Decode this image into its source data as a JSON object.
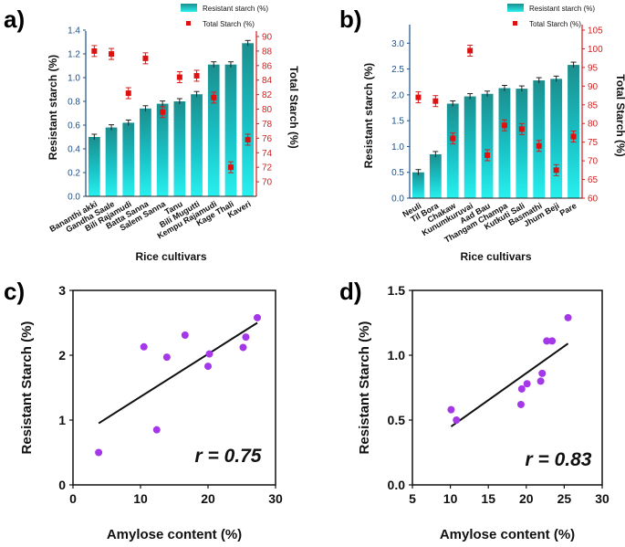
{
  "chart_data": [
    {
      "panel": "a)",
      "type": "bar",
      "xlabel": "Rice cultivars",
      "ylabel": "Resistant starch (%)",
      "y2label": "Total Starch (%)",
      "ylim": [
        0,
        1.5
      ],
      "yticks": [
        "0.0",
        "0.2",
        "0.4",
        "0.6",
        "0.8",
        "1.0",
        "1.2",
        "1.4"
      ],
      "y2lim": [
        68,
        90
      ],
      "y2ticks": [
        "70",
        "72",
        "74",
        "76",
        "78",
        "80",
        "82",
        "84",
        "86",
        "88",
        "90"
      ],
      "legend": {
        "bar": "Resistant starch (%)",
        "marker": "Total Starch (%)"
      },
      "categories": [
        "Bananthi akki",
        "Gandha Saale",
        "Bili Rajamudi",
        "Batta Sanna",
        "Salem Sanna",
        "Tanu",
        "Bili Mugutti",
        "Kempu Rajamudi",
        "Kage Thali",
        "Kaveri"
      ],
      "series": [
        {
          "name": "Resistant starch (%)",
          "values": [
            0.5,
            0.58,
            0.62,
            0.74,
            0.78,
            0.8,
            0.86,
            1.11,
            1.11,
            1.29
          ]
        },
        {
          "name": "Total Starch (%)",
          "axis": "right",
          "values": [
            88.0,
            87.6,
            82.2,
            87.0,
            79.6,
            84.4,
            84.6,
            81.6,
            72.0,
            75.8
          ]
        }
      ]
    },
    {
      "panel": "b)",
      "type": "bar",
      "xlabel": "Rice cultivars",
      "ylabel": "Resistant starch (%)",
      "y2label": "Total Starch (%)",
      "ylim": [
        0,
        3.2
      ],
      "yticks": [
        "0.0",
        "0.5",
        "1.0",
        "1.5",
        "2.0",
        "2.5",
        "3.0"
      ],
      "y2lim": [
        60,
        105
      ],
      "y2ticks": [
        "60",
        "65",
        "70",
        "75",
        "80",
        "85",
        "90",
        "95",
        "100",
        "105"
      ],
      "legend": {
        "bar": "Resistant starch (%)",
        "marker": "Total Starch (%)"
      },
      "categories": [
        "Neuli",
        "Til Bora",
        "Chakaw",
        "Kunumkuruvai",
        "Aad Bau",
        "Thangam Champa",
        "Kutkuti Sali",
        "Basmathi",
        "Jhum Beji",
        "Pare"
      ],
      "series": [
        {
          "name": "Resistant starch (%)",
          "values": [
            0.5,
            0.85,
            1.83,
            1.97,
            2.02,
            2.13,
            2.12,
            2.28,
            2.31,
            2.58
          ]
        },
        {
          "name": "Total Starch (%)",
          "axis": "right",
          "values": [
            87.0,
            86.0,
            76.0,
            99.5,
            71.5,
            79.5,
            78.5,
            74.0,
            67.5,
            76.5
          ]
        }
      ]
    },
    {
      "panel": "c)",
      "type": "scatter",
      "xlabel": "Amylose content (%)",
      "ylabel": "Resistant Starch (%)",
      "xlim": [
        0,
        30
      ],
      "ylim": [
        0,
        3
      ],
      "xticks": [
        "0",
        "10",
        "20",
        "30"
      ],
      "yticks": [
        "0",
        "1",
        "2",
        "3"
      ],
      "annotation": "r = 0.75",
      "x": [
        3.8,
        10.5,
        12.4,
        13.9,
        16.6,
        20.0,
        20.2,
        25.2,
        25.6,
        27.3
      ],
      "y": [
        0.5,
        2.13,
        0.85,
        1.97,
        2.31,
        1.83,
        2.02,
        2.12,
        2.28,
        2.58
      ],
      "fit": {
        "x": [
          3.8,
          27.3
        ],
        "y": [
          0.95,
          2.5
        ]
      }
    },
    {
      "panel": "d)",
      "type": "scatter",
      "xlabel": "Amylose content (%)",
      "ylabel": "Resistant Starch (%)",
      "xlim": [
        5,
        30
      ],
      "ylim": [
        0,
        1.5
      ],
      "xticks": [
        "5",
        "10",
        "15",
        "20",
        "25",
        "30"
      ],
      "yticks": [
        "0.0",
        "0.5",
        "1.0",
        "1.5"
      ],
      "annotation": "r = 0.83",
      "x": [
        10.1,
        10.8,
        19.3,
        19.4,
        20.1,
        21.9,
        22.1,
        22.7,
        23.4,
        25.5
      ],
      "y": [
        0.58,
        0.5,
        0.62,
        0.74,
        0.78,
        0.8,
        0.86,
        1.11,
        1.11,
        1.29
      ],
      "fit": {
        "x": [
          10.1,
          25.5
        ],
        "y": [
          0.45,
          1.09
        ]
      }
    }
  ]
}
